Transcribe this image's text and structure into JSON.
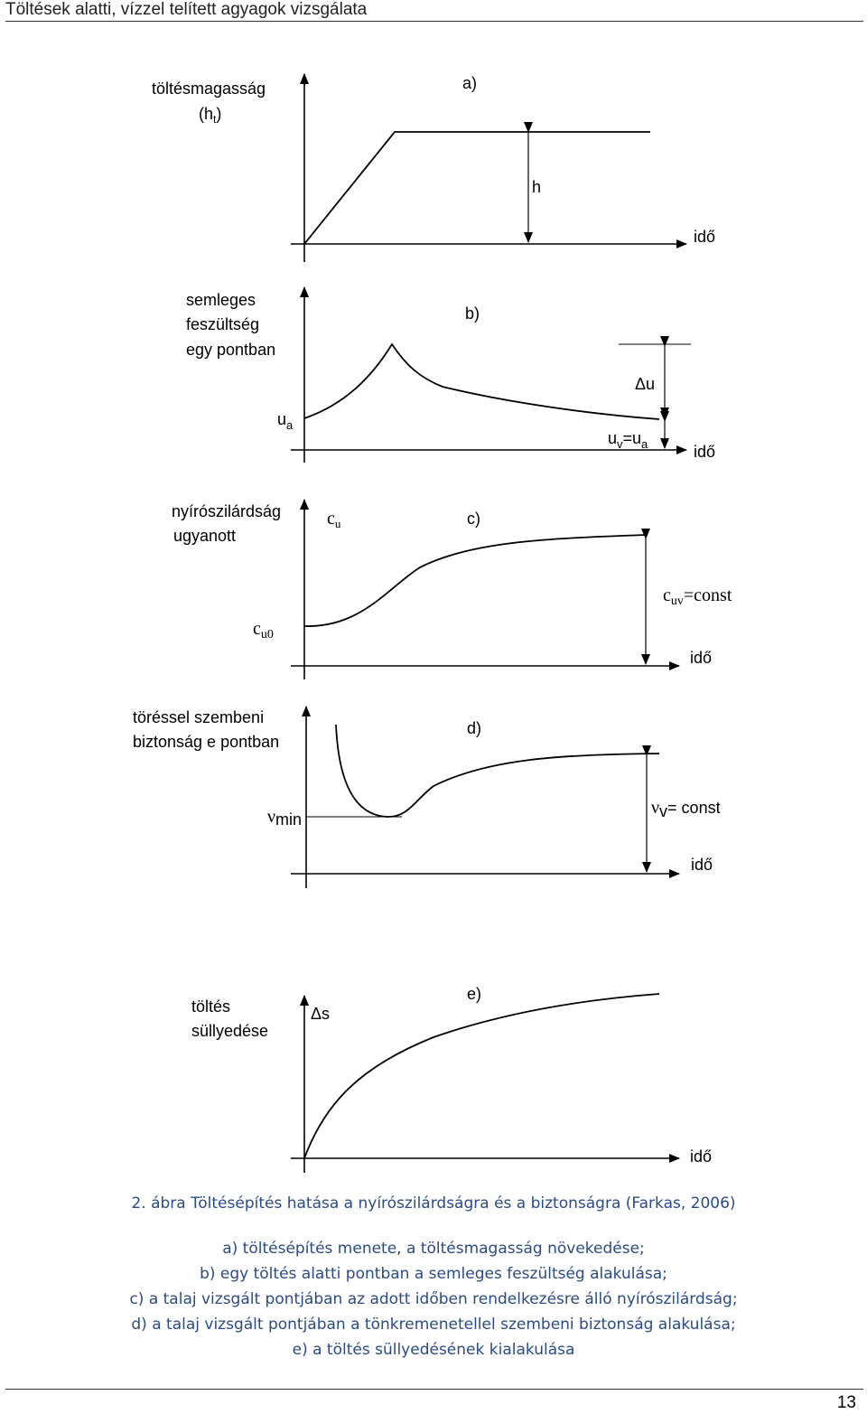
{
  "header": {
    "title": "Töltések alatti, vízzel telített agyagok vizsgálata"
  },
  "figure": {
    "a": {
      "letter": "a)",
      "ylabel_1": "töltésmagasság",
      "ylabel_2": "(h",
      "ylabel_sub": "t",
      "ylabel_3": ")",
      "h": "h",
      "time": "idő"
    },
    "b": {
      "letter": "b)",
      "ylabel_1": "semleges",
      "ylabel_2": "feszültség",
      "ylabel_3": "egy pontban",
      "ua": "u",
      "ua_sub": "a",
      "delta_u": "Δu",
      "uv": "u",
      "uv_sub": "v",
      "uv_eq": "=u",
      "uv_sub2": "a",
      "time": "idő"
    },
    "c": {
      "letter": "c)",
      "ylabel_1": "nyírószilárdság",
      "ylabel_2": "ugyanott",
      "cu": "c",
      "cu_sub": "u",
      "cu0": "c",
      "cu0_sub": "u0",
      "cuv": "c",
      "cuv_sub": "uv",
      "cuv_eq": "=const",
      "time": "idő"
    },
    "d": {
      "letter": "d)",
      "ylabel_1": "töréssel szembeni",
      "ylabel_2": "biztonság e pontban",
      "nu_min": "ν",
      "nu_min_sub": "min",
      "nu_v": "ν",
      "nu_v_sub": "v",
      "nu_v_eq": "= const",
      "time": "idő"
    },
    "e": {
      "letter": "e)",
      "ylabel_1": "töltés",
      "ylabel_2": "süllyedése",
      "delta_s": "Δs",
      "time": "idő"
    }
  },
  "caption": {
    "title": "2. ábra Töltésépítés hatása a nyírószilárdságra és a biztonságra (Farkas, 2006)",
    "line_a": "a) töltésépítés menete, a töltésmagasság növekedése;",
    "line_b": "b) egy töltés alatti pontban a semleges feszültség alakulása;",
    "line_c": "c) a talaj vizsgált pontjában az adott időben rendelkezésre álló nyírószilárdság;",
    "line_d": "d) a talaj vizsgált pontjában a tönkremenetellel szembeni biztonság alakulása;",
    "line_e": "e) a töltés süllyedésének kialakulása"
  },
  "footer": {
    "page_number": "13"
  }
}
